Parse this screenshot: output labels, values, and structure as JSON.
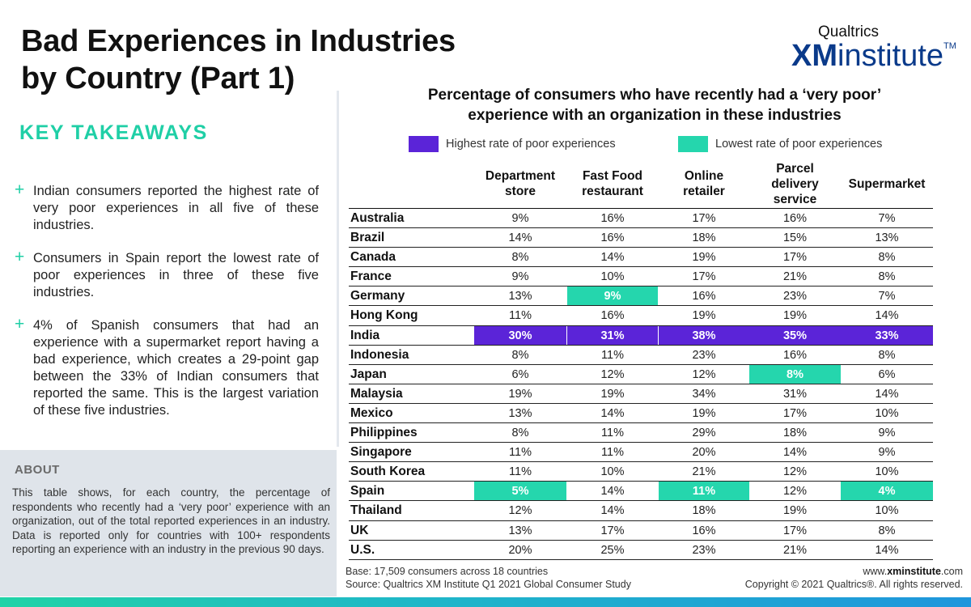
{
  "header": {
    "title_line1": "Bad Experiences in Industries",
    "title_line2": "by Country (Part 1)"
  },
  "logo": {
    "top": "Qualtrics",
    "xm": "XM",
    "institute": "institute",
    "tm": "TM"
  },
  "takeaways": {
    "heading": "KEY TAKEAWAYS",
    "items": [
      "Indian consumers reported the highest rate of very poor experiences in all five of these industries.",
      "Consumers in Spain report the lowest rate of poor experiences in three of these five industries.",
      "4% of Spanish consumers that had an experience with a supermarket report having a bad experience, which creates a 29-point gap between the 33% of Indian consumers that reported the same. This is the largest variation of these five industries."
    ]
  },
  "about": {
    "heading": "ABOUT",
    "text": "This table shows, for each country, the percentage of respondents who recently had a ‘very poor’ experience with an organization, out of the total reported experiences in an industry. Data is reported only for countries with 100+ respondents reporting an experience with an industry in the previous 90 days."
  },
  "colors": {
    "highest": "#5b24d8",
    "lowest": "#25d6ad",
    "accent": "#1fcfa6",
    "brand": "#0a3a8a"
  },
  "chart_data": {
    "type": "table",
    "title": "Percentage of consumers who have recently had a ‘very poor’ experience with an organization in these industries",
    "legend": {
      "highest": "Highest rate of poor experiences",
      "lowest": "Lowest rate of poor experiences"
    },
    "columns": [
      "Department store",
      "Fast Food restaurant",
      "Online retailer",
      "Parcel delivery service",
      "Supermarket"
    ],
    "rows": [
      {
        "country": "Australia",
        "values": [
          "9%",
          "16%",
          "17%",
          "16%",
          "7%"
        ],
        "hl": [
          "",
          "",
          "",
          "",
          ""
        ]
      },
      {
        "country": "Brazil",
        "values": [
          "14%",
          "16%",
          "18%",
          "15%",
          "13%"
        ],
        "hl": [
          "",
          "",
          "",
          "",
          ""
        ]
      },
      {
        "country": "Canada",
        "values": [
          "8%",
          "14%",
          "19%",
          "17%",
          "8%"
        ],
        "hl": [
          "",
          "",
          "",
          "",
          ""
        ]
      },
      {
        "country": "France",
        "values": [
          "9%",
          "10%",
          "17%",
          "21%",
          "8%"
        ],
        "hl": [
          "",
          "",
          "",
          "",
          ""
        ]
      },
      {
        "country": "Germany",
        "values": [
          "13%",
          "9%",
          "16%",
          "23%",
          "7%"
        ],
        "hl": [
          "",
          "low",
          "",
          "",
          ""
        ]
      },
      {
        "country": "Hong Kong",
        "values": [
          "11%",
          "16%",
          "19%",
          "19%",
          "14%"
        ],
        "hl": [
          "",
          "",
          "",
          "",
          ""
        ]
      },
      {
        "country": "India",
        "values": [
          "30%",
          "31%",
          "38%",
          "35%",
          "33%"
        ],
        "hl": [
          "high",
          "high",
          "high",
          "high",
          "high"
        ]
      },
      {
        "country": "Indonesia",
        "values": [
          "8%",
          "11%",
          "23%",
          "16%",
          "8%"
        ],
        "hl": [
          "",
          "",
          "",
          "",
          ""
        ]
      },
      {
        "country": "Japan",
        "values": [
          "6%",
          "12%",
          "12%",
          "8%",
          "6%"
        ],
        "hl": [
          "",
          "",
          "",
          "low",
          ""
        ]
      },
      {
        "country": "Malaysia",
        "values": [
          "19%",
          "19%",
          "34%",
          "31%",
          "14%"
        ],
        "hl": [
          "",
          "",
          "",
          "",
          ""
        ]
      },
      {
        "country": "Mexico",
        "values": [
          "13%",
          "14%",
          "19%",
          "17%",
          "10%"
        ],
        "hl": [
          "",
          "",
          "",
          "",
          ""
        ]
      },
      {
        "country": "Philippines",
        "values": [
          "8%",
          "11%",
          "29%",
          "18%",
          "9%"
        ],
        "hl": [
          "",
          "",
          "",
          "",
          ""
        ]
      },
      {
        "country": "Singapore",
        "values": [
          "11%",
          "11%",
          "20%",
          "14%",
          "9%"
        ],
        "hl": [
          "",
          "",
          "",
          "",
          ""
        ]
      },
      {
        "country": "South Korea",
        "values": [
          "11%",
          "10%",
          "21%",
          "12%",
          "10%"
        ],
        "hl": [
          "",
          "",
          "",
          "",
          ""
        ]
      },
      {
        "country": "Spain",
        "values": [
          "5%",
          "14%",
          "11%",
          "12%",
          "4%"
        ],
        "hl": [
          "low",
          "",
          "low",
          "",
          "low"
        ]
      },
      {
        "country": "Thailand",
        "values": [
          "12%",
          "14%",
          "18%",
          "19%",
          "10%"
        ],
        "hl": [
          "",
          "",
          "",
          "",
          ""
        ]
      },
      {
        "country": "UK",
        "values": [
          "13%",
          "17%",
          "16%",
          "17%",
          "8%"
        ],
        "hl": [
          "",
          "",
          "",
          "",
          ""
        ]
      },
      {
        "country": "U.S.",
        "values": [
          "20%",
          "25%",
          "23%",
          "21%",
          "14%"
        ],
        "hl": [
          "",
          "",
          "",
          "",
          ""
        ]
      }
    ]
  },
  "footer": {
    "base": "Base: 17,509 consumers across 18 countries",
    "source": "Source: Qualtrics XM Institute Q1 2021 Global Consumer Study",
    "url_prefix": "www.",
    "url_domain": "xminstitute",
    "url_suffix": ".com",
    "copyright": "Copyright © 2021 Qualtrics®. All rights reserved."
  }
}
